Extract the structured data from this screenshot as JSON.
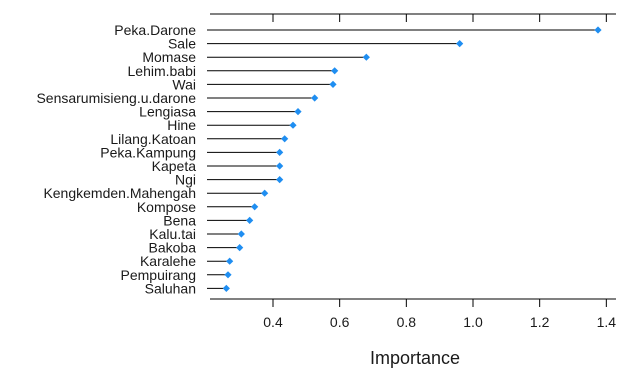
{
  "chart_data": {
    "type": "dot-lollipop",
    "title": "",
    "xlabel": "Importance",
    "ylabel": "",
    "xlim": [
      0.22,
      1.42
    ],
    "xticks": [
      0.4,
      0.6,
      0.8,
      1.0,
      1.2,
      1.4
    ],
    "xtick_labels": [
      "0.4",
      "0.6",
      "0.8",
      "1.0",
      "1.2",
      "1.4"
    ],
    "baseline": 0.2,
    "grid": false,
    "legend": "none",
    "point_color": "#1f8ef1",
    "line_color": "#000000",
    "categories": [
      "Peka.Darone",
      "Sale",
      "Momase",
      "Lehim.babi",
      "Wai",
      "Sensarumisieng.u.darone",
      "Lengiasa",
      "Hine",
      "Lilang.Katoan",
      "Peka.Kampung",
      "Kapeta",
      "Ngi",
      "Kengkemden.Mahengah",
      "Kompose",
      "Bena",
      "Kalu.tai",
      "Bakoba",
      "Karalehe",
      "Pempuirang",
      "Saluhan"
    ],
    "values": [
      1.375,
      0.96,
      0.68,
      0.585,
      0.58,
      0.525,
      0.475,
      0.46,
      0.435,
      0.42,
      0.42,
      0.42,
      0.375,
      0.345,
      0.33,
      0.305,
      0.3,
      0.27,
      0.265,
      0.26
    ]
  }
}
